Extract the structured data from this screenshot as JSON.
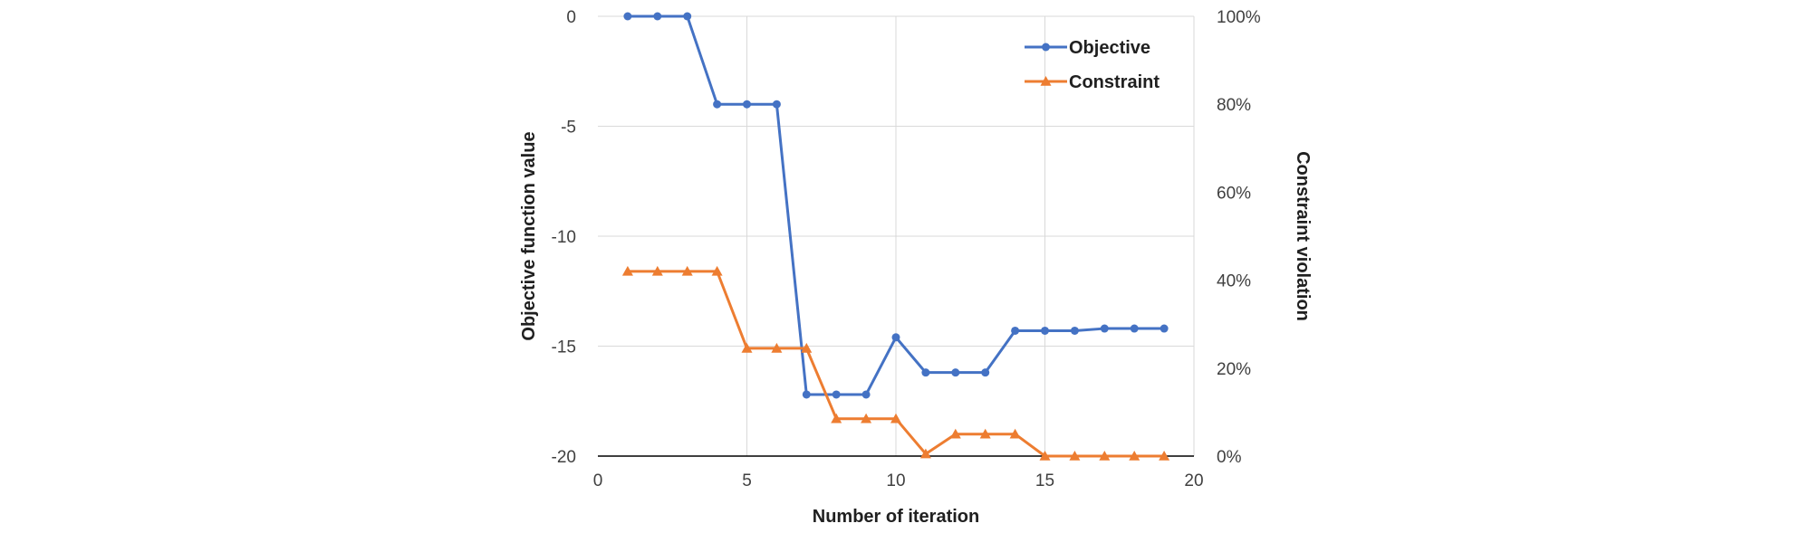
{
  "chart_data": {
    "type": "line",
    "title": "",
    "xlabel": "Number of iteration",
    "ylabel": "Objective function value",
    "y2label": "Constraint violation",
    "xlim": [
      0,
      20
    ],
    "ylim": [
      -20,
      0
    ],
    "y2lim": [
      0,
      1
    ],
    "x_ticks": [
      "0",
      "5",
      "10",
      "15",
      "20"
    ],
    "y_ticks": [
      "0",
      "-5",
      "-10",
      "-15",
      "-20"
    ],
    "y2_ticks": [
      "100%",
      "80%",
      "60%",
      "40%",
      "20%",
      "0%"
    ],
    "grid": true,
    "legend_position": "top-right",
    "series": [
      {
        "name": "Objective",
        "axis": "left",
        "color": "#4472C4",
        "marker": "circle",
        "x": [
          1,
          2,
          3,
          4,
          5,
          6,
          7,
          8,
          9,
          10,
          11,
          12,
          13,
          14,
          15,
          16,
          17,
          18,
          19
        ],
        "values": [
          0,
          0,
          0,
          -4.0,
          -4.0,
          -4.0,
          -17.2,
          -17.2,
          -17.2,
          -14.6,
          -16.2,
          -16.2,
          -16.2,
          -14.3,
          -14.3,
          -14.3,
          -14.2,
          -14.2,
          -14.2
        ]
      },
      {
        "name": "Constraint",
        "axis": "right",
        "color": "#ED7D31",
        "marker": "triangle",
        "x": [
          1,
          2,
          3,
          4,
          5,
          6,
          7,
          8,
          9,
          10,
          11,
          12,
          13,
          14,
          15,
          16,
          17,
          18,
          19
        ],
        "values": [
          0.42,
          0.42,
          0.42,
          0.42,
          0.245,
          0.245,
          0.245,
          0.085,
          0.085,
          0.085,
          0.005,
          0.05,
          0.05,
          0.05,
          0,
          0,
          0,
          0,
          0
        ]
      }
    ]
  }
}
